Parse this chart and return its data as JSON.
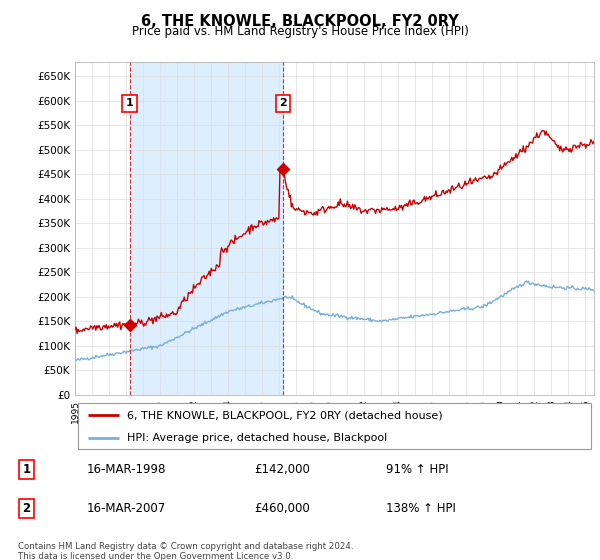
{
  "title": "6, THE KNOWLE, BLACKPOOL, FY2 0RY",
  "subtitle": "Price paid vs. HM Land Registry's House Price Index (HPI)",
  "ylim": [
    0,
    680000
  ],
  "yticks": [
    0,
    50000,
    100000,
    150000,
    200000,
    250000,
    300000,
    350000,
    400000,
    450000,
    500000,
    550000,
    600000,
    650000
  ],
  "hpi_color": "#7ab0d4",
  "price_color": "#cc0000",
  "shade_color": "#ddeeff",
  "sale1_date": 1998.21,
  "sale1_price": 142000,
  "sale1_label": "1",
  "sale2_date": 2007.21,
  "sale2_price": 460000,
  "sale2_label": "2",
  "legend_label_price": "6, THE KNOWLE, BLACKPOOL, FY2 0RY (detached house)",
  "legend_label_hpi": "HPI: Average price, detached house, Blackpool",
  "table_rows": [
    [
      "1",
      "16-MAR-1998",
      "£142,000",
      "91% ↑ HPI"
    ],
    [
      "2",
      "16-MAR-2007",
      "£460,000",
      "138% ↑ HPI"
    ]
  ],
  "footnote": "Contains HM Land Registry data © Crown copyright and database right 2024.\nThis data is licensed under the Open Government Licence v3.0.",
  "xmin": 1995,
  "xmax": 2025.5,
  "background_color": "#ffffff",
  "grid_color": "#dddddd"
}
